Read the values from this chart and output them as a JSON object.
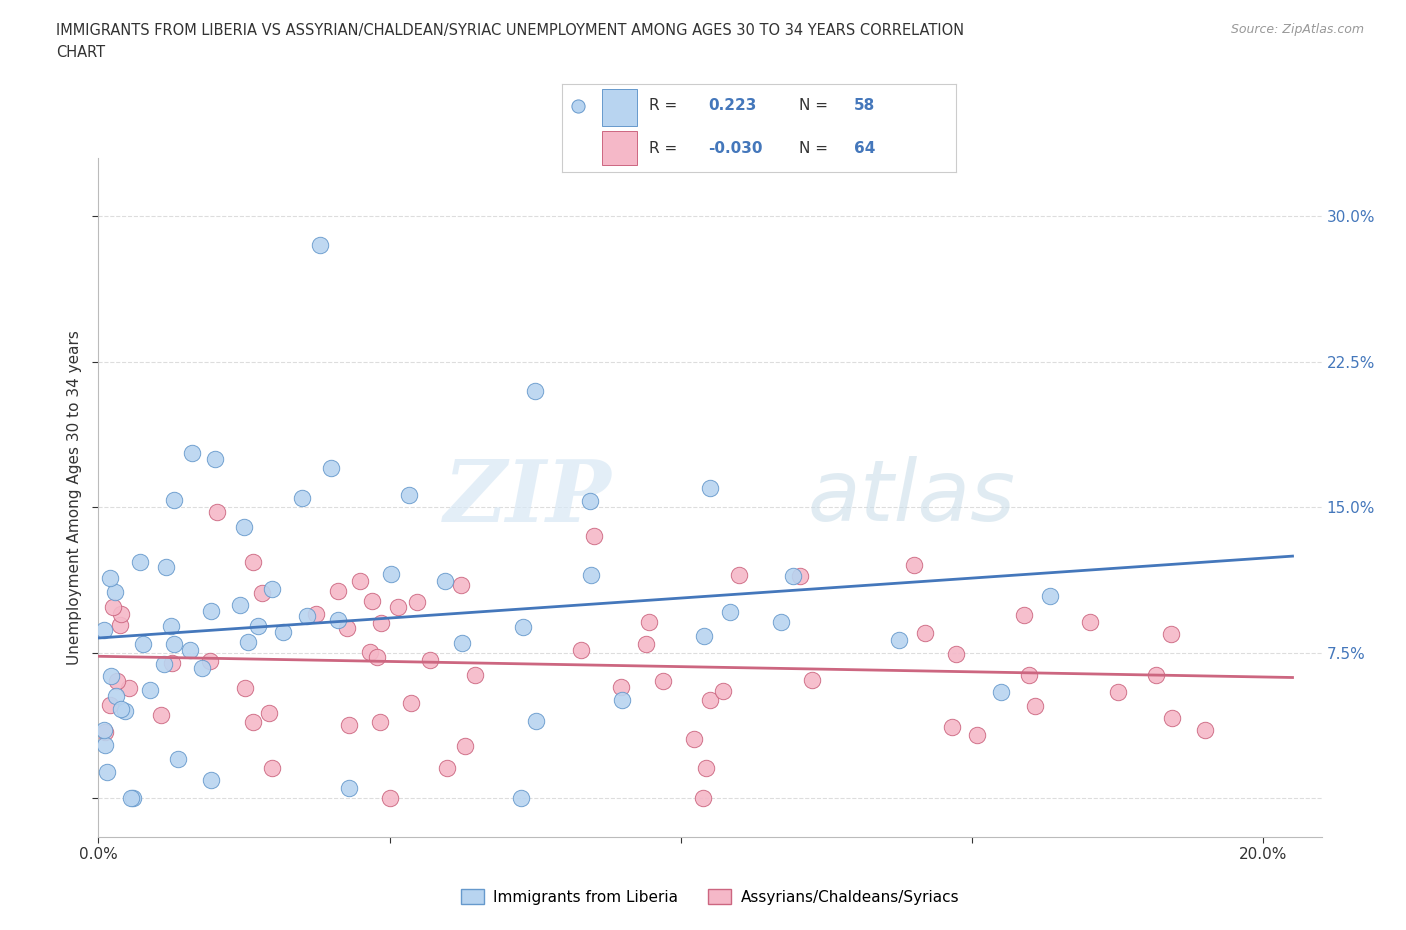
{
  "title_line1": "IMMIGRANTS FROM LIBERIA VS ASSYRIAN/CHALDEAN/SYRIAC UNEMPLOYMENT AMONG AGES 30 TO 34 YEARS CORRELATION",
  "title_line2": "CHART",
  "source": "Source: ZipAtlas.com",
  "ylabel": "Unemployment Among Ages 30 to 34 years",
  "xlim": [
    0.0,
    0.21
  ],
  "ylim": [
    -0.02,
    0.33
  ],
  "xticks": [
    0.0,
    0.05,
    0.1,
    0.15,
    0.2
  ],
  "yticks": [
    0.0,
    0.075,
    0.15,
    0.225,
    0.3
  ],
  "series1_name": "Immigrants from Liberia",
  "series1_color": "#b8d4f0",
  "series1_edge_color": "#6699cc",
  "series1_R": 0.223,
  "series1_N": 58,
  "series1_line_color": "#4477bb",
  "series2_name": "Assyrians/Chaldeans/Syriacs",
  "series2_color": "#f5b8c8",
  "series2_edge_color": "#cc6680",
  "series2_R": -0.03,
  "series2_N": 64,
  "series2_line_color": "#cc6680",
  "watermark_zip": "ZIP",
  "watermark_atlas": "atlas",
  "background_color": "#ffffff",
  "grid_color": "#dddddd",
  "label_color": "#4477bb",
  "legend_R_color": "#222244"
}
